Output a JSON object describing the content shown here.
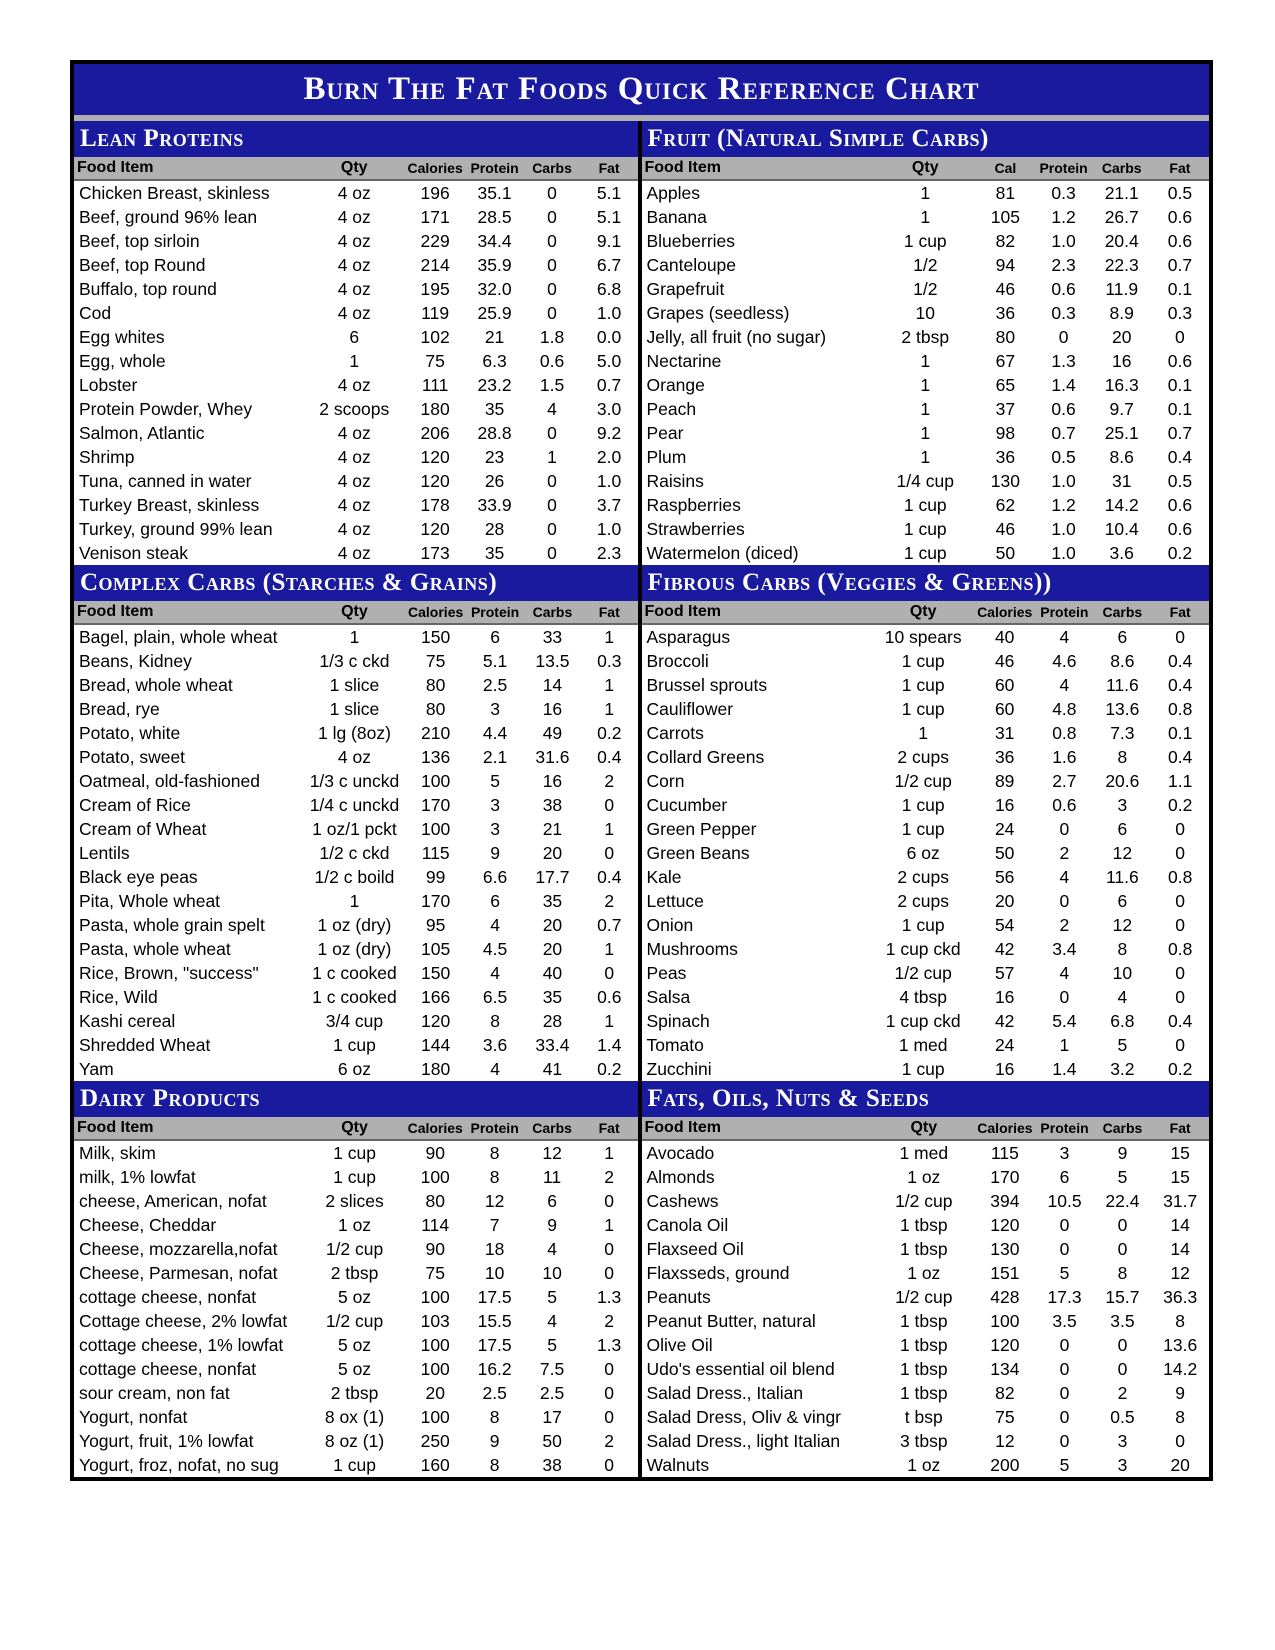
{
  "title": "Burn The Fat Foods Quick Reference Chart",
  "headers": {
    "food": "Food Item",
    "qty": "Qty",
    "cal": "Calories",
    "calShort": "Cal",
    "prot": "Protein",
    "carbs": "Carbs",
    "fat": "Fat"
  },
  "colors": {
    "navy": "#1a1a9e",
    "headerGrey": "#b0b0b0",
    "border": "#000000",
    "text": "#000000",
    "white": "#ffffff"
  },
  "sections": [
    {
      "title": "Lean Proteins",
      "rows": [
        [
          "Chicken Breast, skinless",
          "4 oz",
          "196",
          "35.1",
          "0",
          "5.1"
        ],
        [
          "Beef, ground 96% lean",
          "4 oz",
          "171",
          "28.5",
          "0",
          "5.1"
        ],
        [
          "Beef, top sirloin",
          "4 oz",
          "229",
          "34.4",
          "0",
          "9.1"
        ],
        [
          "Beef, top Round",
          "4 oz",
          "214",
          "35.9",
          "0",
          "6.7"
        ],
        [
          "Buffalo, top round",
          "4 oz",
          "195",
          "32.0",
          "0",
          "6.8"
        ],
        [
          "Cod",
          "4 oz",
          "119",
          "25.9",
          "0",
          "1.0"
        ],
        [
          "Egg whites",
          "6",
          "102",
          "21",
          "1.8",
          "0.0"
        ],
        [
          "Egg, whole",
          "1",
          "75",
          "6.3",
          "0.6",
          "5.0"
        ],
        [
          "Lobster",
          "4 oz",
          "111",
          "23.2",
          "1.5",
          "0.7"
        ],
        [
          "Protein Powder, Whey",
          "2 scoops",
          "180",
          "35",
          "4",
          "3.0"
        ],
        [
          "Salmon, Atlantic",
          "4 oz",
          "206",
          "28.8",
          "0",
          "9.2"
        ],
        [
          "Shrimp",
          "4 oz",
          "120",
          "23",
          "1",
          "2.0"
        ],
        [
          "Tuna, canned in water",
          "4 oz",
          "120",
          "26",
          "0",
          "1.0"
        ],
        [
          "Turkey Breast, skinless",
          "4 oz",
          "178",
          "33.9",
          "0",
          "3.7"
        ],
        [
          "Turkey, ground 99% lean",
          "4 oz",
          "120",
          "28",
          "0",
          "1.0"
        ],
        [
          "Venison steak",
          "4 oz",
          "173",
          "35",
          "0",
          "2.3"
        ]
      ]
    },
    {
      "title": "Fruit (Natural Simple Carbs)",
      "calShort": true,
      "rows": [
        [
          "Apples",
          "1",
          "81",
          "0.3",
          "21.1",
          "0.5"
        ],
        [
          "Banana",
          "1",
          "105",
          "1.2",
          "26.7",
          "0.6"
        ],
        [
          "Blueberries",
          "1 cup",
          "82",
          "1.0",
          "20.4",
          "0.6"
        ],
        [
          "Canteloupe",
          "1/2",
          "94",
          "2.3",
          "22.3",
          "0.7"
        ],
        [
          "Grapefruit",
          "1/2",
          "46",
          "0.6",
          "11.9",
          "0.1"
        ],
        [
          "Grapes (seedless)",
          "10",
          "36",
          "0.3",
          "8.9",
          "0.3"
        ],
        [
          "Jelly, all fruit (no sugar)",
          "2 tbsp",
          "80",
          "0",
          "20",
          "0"
        ],
        [
          "Nectarine",
          "1",
          "67",
          "1.3",
          "16",
          "0.6"
        ],
        [
          "Orange",
          "1",
          "65",
          "1.4",
          "16.3",
          "0.1"
        ],
        [
          "Peach",
          "1",
          "37",
          "0.6",
          "9.7",
          "0.1"
        ],
        [
          "Pear",
          "1",
          "98",
          "0.7",
          "25.1",
          "0.7"
        ],
        [
          "Plum",
          "1",
          "36",
          "0.5",
          "8.6",
          "0.4"
        ],
        [
          "Raisins",
          "1/4 cup",
          "130",
          "1.0",
          "31",
          "0.5"
        ],
        [
          "Raspberries",
          "1 cup",
          "62",
          "1.2",
          "14.2",
          "0.6"
        ],
        [
          "Strawberries",
          "1 cup",
          "46",
          "1.0",
          "10.4",
          "0.6"
        ],
        [
          "Watermelon (diced)",
          "1 cup",
          "50",
          "1.0",
          "3.6",
          "0.2"
        ]
      ]
    },
    {
      "title": "Complex Carbs (Starches & Grains)",
      "rows": [
        [
          "Bagel, plain, whole wheat",
          "1",
          "150",
          "6",
          "33",
          "1"
        ],
        [
          "Beans, Kidney",
          "1/3 c ckd",
          "75",
          "5.1",
          "13.5",
          "0.3"
        ],
        [
          "Bread,  whole wheat",
          "1 slice",
          "80",
          "2.5",
          "14",
          "1"
        ],
        [
          "Bread, rye",
          "1 slice",
          "80",
          "3",
          "16",
          "1"
        ],
        [
          "Potato, white",
          "1 lg (8oz)",
          "210",
          "4.4",
          "49",
          "0.2"
        ],
        [
          "Potato, sweet",
          "4 oz",
          "136",
          "2.1",
          "31.6",
          "0.4"
        ],
        [
          "Oatmeal, old-fashioned",
          "1/3 c unckd",
          "100",
          "5",
          "16",
          "2"
        ],
        [
          "Cream of Rice",
          "1/4 c unckd",
          "170",
          "3",
          "38",
          "0"
        ],
        [
          "Cream of Wheat",
          "1 oz/1 pckt",
          "100",
          "3",
          "21",
          "1"
        ],
        [
          "Lentils",
          "1/2 c ckd",
          "115",
          "9",
          "20",
          "0"
        ],
        [
          "Black eye peas",
          "1/2 c boild",
          "99",
          "6.6",
          "17.7",
          "0.4"
        ],
        [
          "Pita, Whole wheat",
          "1",
          "170",
          "6",
          "35",
          "2"
        ],
        [
          "Pasta, whole grain spelt",
          "1 oz (dry)",
          "95",
          "4",
          "20",
          "0.7"
        ],
        [
          "Pasta, whole wheat",
          "1 oz (dry)",
          "105",
          "4.5",
          "20",
          "1"
        ],
        [
          "Rice, Brown, \"success\"",
          "1 c cooked",
          "150",
          "4",
          "40",
          "0"
        ],
        [
          "Rice, Wild",
          "1 c cooked",
          "166",
          "6.5",
          "35",
          "0.6"
        ],
        [
          "Kashi cereal",
          "3/4 cup",
          "120",
          "8",
          "28",
          "1"
        ],
        [
          "Shredded Wheat",
          "1 cup",
          "144",
          "3.6",
          "33.4",
          "1.4"
        ],
        [
          "Yam",
          "6 oz",
          "180",
          "4",
          "41",
          "0.2"
        ]
      ]
    },
    {
      "title": "Fibrous Carbs (Veggies & Greens))",
      "rows": [
        [
          "Asparagus",
          "10 spears",
          "40",
          "4",
          "6",
          "0"
        ],
        [
          "Broccoli",
          "1 cup",
          "46",
          "4.6",
          "8.6",
          "0.4"
        ],
        [
          "Brussel sprouts",
          "1 cup",
          "60",
          "4",
          "11.6",
          "0.4"
        ],
        [
          "Cauliflower",
          "1 cup",
          "60",
          "4.8",
          "13.6",
          "0.8"
        ],
        [
          "Carrots",
          "1",
          "31",
          "0.8",
          "7.3",
          "0.1"
        ],
        [
          "Collard Greens",
          "2 cups",
          "36",
          "1.6",
          "8",
          "0.4"
        ],
        [
          "Corn",
          "1/2 cup",
          "89",
          "2.7",
          "20.6",
          "1.1"
        ],
        [
          "Cucumber",
          "1 cup",
          "16",
          "0.6",
          "3",
          "0.2"
        ],
        [
          "Green Pepper",
          "1 cup",
          "24",
          "0",
          "6",
          "0"
        ],
        [
          "Green Beans",
          "6 oz",
          "50",
          "2",
          "12",
          "0"
        ],
        [
          "Kale",
          "2 cups",
          "56",
          "4",
          "11.6",
          "0.8"
        ],
        [
          "Lettuce",
          "2 cups",
          "20",
          "0",
          "6",
          "0"
        ],
        [
          "Onion",
          "1 cup",
          "54",
          "2",
          "12",
          "0"
        ],
        [
          "Mushrooms",
          "1 cup ckd",
          "42",
          "3.4",
          "8",
          "0.8"
        ],
        [
          "Peas",
          "1/2 cup",
          "57",
          "4",
          "10",
          "0"
        ],
        [
          "Salsa",
          "4 tbsp",
          "16",
          "0",
          "4",
          "0"
        ],
        [
          "Spinach",
          "1 cup ckd",
          "42",
          "5.4",
          "6.8",
          "0.4"
        ],
        [
          "Tomato",
          "1 med",
          "24",
          "1",
          "5",
          "0"
        ],
        [
          "Zucchini",
          "1 cup",
          "16",
          "1.4",
          "3.2",
          "0.2"
        ]
      ]
    },
    {
      "title": "Dairy Products",
      "rows": [
        [
          "Milk, skim",
          "1 cup",
          "90",
          "8",
          "12",
          "1"
        ],
        [
          "milk, 1% lowfat",
          "1 cup",
          "100",
          "8",
          "11",
          "2"
        ],
        [
          "cheese, American, nofat",
          "2 slices",
          "80",
          "12",
          "6",
          "0"
        ],
        [
          "Cheese, Cheddar",
          "1 oz",
          "114",
          "7",
          "9",
          "1"
        ],
        [
          "Cheese, mozzarella,nofat",
          "1/2 cup",
          "90",
          "18",
          "4",
          "0"
        ],
        [
          "Cheese, Parmesan, nofat",
          "2 tbsp",
          "75",
          "10",
          "10",
          "0"
        ],
        [
          "cottage cheese, nonfat",
          "5 oz",
          "100",
          "17.5",
          "5",
          "1.3"
        ],
        [
          "Cottage cheese, 2% lowfat",
          "1/2 cup",
          "103",
          "15.5",
          "4",
          "2"
        ],
        [
          "cottage cheese, 1% lowfat",
          "5 oz",
          "100",
          "17.5",
          "5",
          "1.3"
        ],
        [
          "cottage cheese, nonfat",
          "5 oz",
          "100",
          "16.2",
          "7.5",
          "0"
        ],
        [
          "sour cream, non fat",
          "2 tbsp",
          "20",
          "2.5",
          "2.5",
          "0"
        ],
        [
          "Yogurt, nonfat",
          "8 ox (1)",
          "100",
          "8",
          "17",
          "0"
        ],
        [
          "Yogurt, fruit, 1% lowfat",
          "8 oz (1)",
          "250",
          "9",
          "50",
          "2"
        ],
        [
          "Yogurt, froz, nofat, no sug",
          "1 cup",
          "160",
          "8",
          "38",
          "0"
        ]
      ]
    },
    {
      "title": "Fats, Oils, Nuts & Seeds",
      "rows": [
        [
          "Avocado",
          "1 med",
          "115",
          "3",
          "9",
          "15"
        ],
        [
          "Almonds",
          "1 oz",
          "170",
          "6",
          "5",
          "15"
        ],
        [
          "Cashews",
          "1/2 cup",
          "394",
          "10.5",
          "22.4",
          "31.7"
        ],
        [
          "Canola Oil",
          "1 tbsp",
          "120",
          "0",
          "0",
          "14"
        ],
        [
          "Flaxseed Oil",
          "1 tbsp",
          "130",
          "0",
          "0",
          "14"
        ],
        [
          "Flaxsseds, ground",
          "1 oz",
          "151",
          "5",
          "8",
          "12"
        ],
        [
          "Peanuts",
          "1/2 cup",
          "428",
          "17.3",
          "15.7",
          "36.3"
        ],
        [
          "Peanut Butter, natural",
          "1 tbsp",
          "100",
          "3.5",
          "3.5",
          "8"
        ],
        [
          "Olive Oil",
          "1 tbsp",
          "120",
          "0",
          "0",
          "13.6"
        ],
        [
          "Udo's essential oil blend",
          "1 tbsp",
          "134",
          "0",
          "0",
          "14.2"
        ],
        [
          "Salad Dress., Italian",
          "1 tbsp",
          "82",
          "0",
          "2",
          "9"
        ],
        [
          "Salad Dress, Oliv & vingr",
          "t bsp",
          "75",
          "0",
          "0.5",
          "8"
        ],
        [
          "Salad Dress., light Italian",
          "3 tbsp",
          "12",
          "0",
          "3",
          "0"
        ],
        [
          "Walnuts",
          "1 oz",
          "200",
          "5",
          "3",
          "20"
        ]
      ]
    }
  ]
}
